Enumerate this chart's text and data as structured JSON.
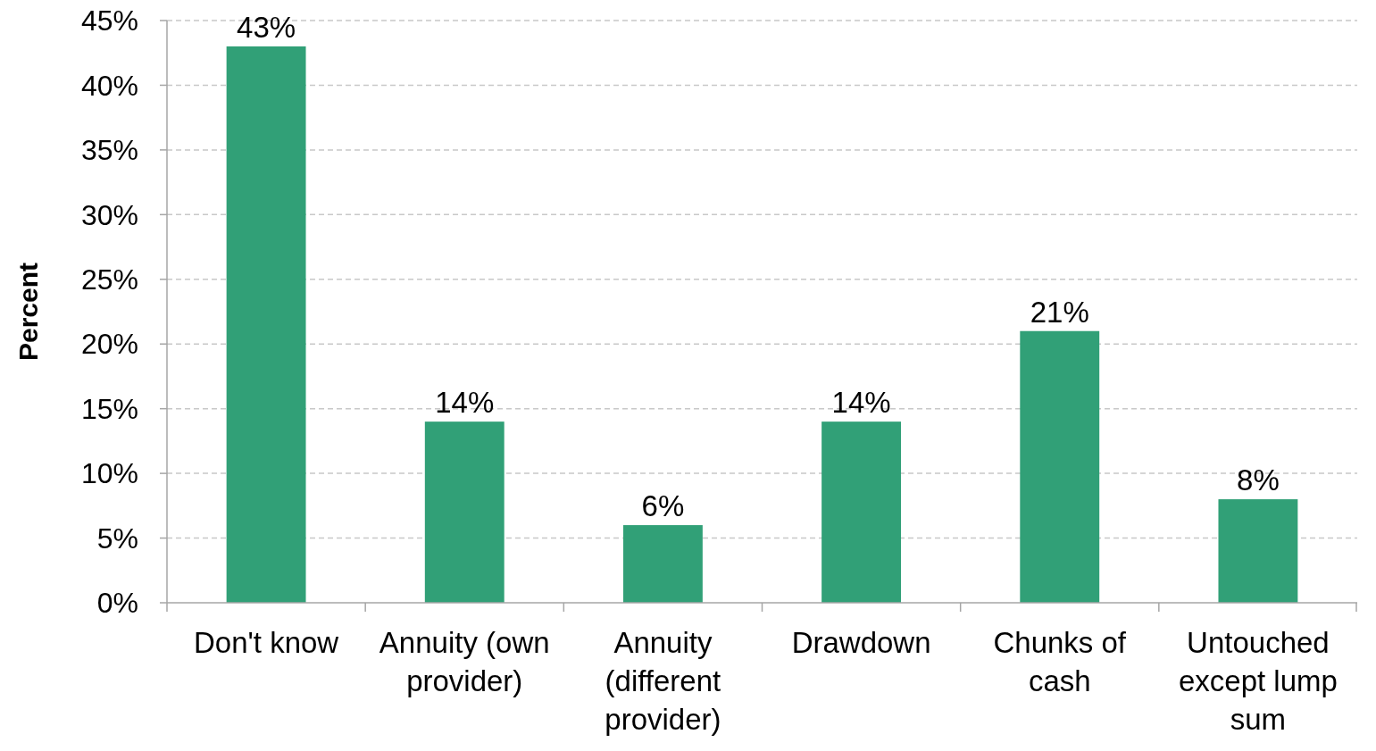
{
  "chart_data": {
    "type": "bar",
    "ylabel": "Percent",
    "categories": [
      "Don't know",
      "Annuity (own provider)",
      "Annuity (different provider)",
      "Drawdown",
      "Chunks of cash",
      "Untouched except lump sum"
    ],
    "values": [
      43,
      14,
      6,
      14,
      21,
      8
    ],
    "value_labels": [
      "43%",
      "14%",
      "6%",
      "14%",
      "21%",
      "8%"
    ],
    "color": "#31a077",
    "ylim": [
      0,
      45
    ],
    "yticks": [
      {
        "value": 0,
        "label": "0%"
      },
      {
        "value": 5,
        "label": "5%"
      },
      {
        "value": 10,
        "label": "10%"
      },
      {
        "value": 15,
        "label": "15%"
      },
      {
        "value": 20,
        "label": "20%"
      },
      {
        "value": 25,
        "label": "25%"
      },
      {
        "value": 30,
        "label": "30%"
      },
      {
        "value": 35,
        "label": "35%"
      },
      {
        "value": 40,
        "label": "40%"
      },
      {
        "value": 45,
        "label": "45%"
      }
    ],
    "grid": "y"
  }
}
